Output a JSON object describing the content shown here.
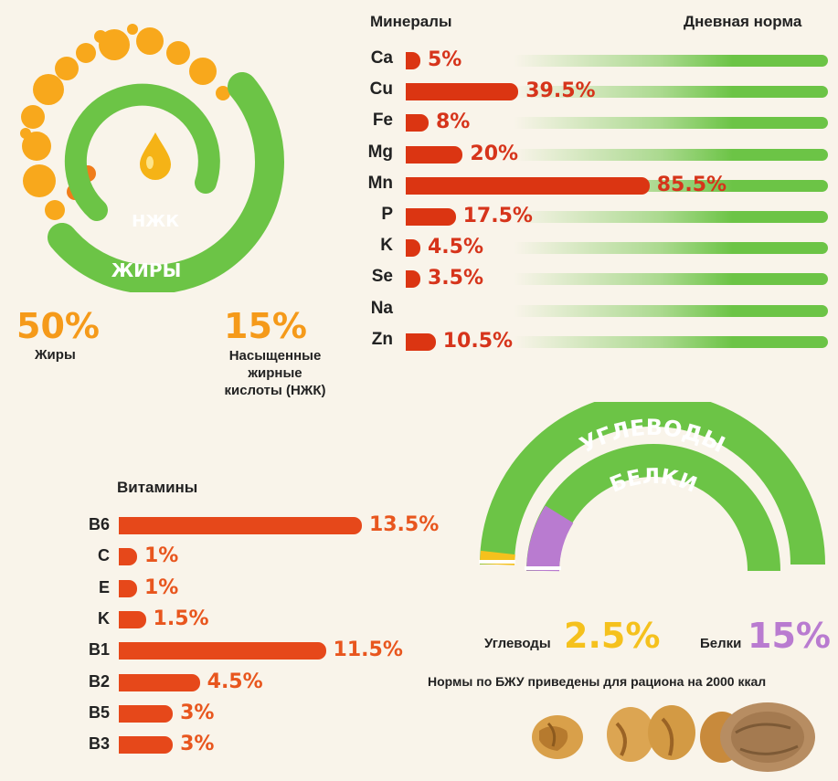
{
  "fats": {
    "ring_outer_label": "ЖИРЫ",
    "ring_inner_label": "НЖК",
    "fat_pct": "50%",
    "fat_label": "Жиры",
    "sfa_pct": "15%",
    "sfa_label_lines": [
      "Насыщенные",
      "жирные",
      "кислоты (НЖК)"
    ]
  },
  "minerals": {
    "title": "Минералы",
    "norm_title": "Дневная норма"
  },
  "vitamins": {
    "title": "Витамины"
  },
  "macros": {
    "carbs_arc_label": "УГЛЕВОДЫ",
    "protein_arc_label": "БЕЛКИ",
    "carbs_label": "Углеводы",
    "carbs_pct": "2.5%",
    "protein_label": "Белки",
    "protein_pct": "15%",
    "note": "Нормы по БЖУ приведены для рациона на 2000 ккал"
  },
  "colors": {
    "green": "#6cc446",
    "orange": "#f59a1a",
    "red_bar": "#db3512",
    "yellow": "#f5c11d",
    "violet": "#b97bd0"
  },
  "chart_data": [
    {
      "type": "bar",
      "orientation": "horizontal",
      "title": "Минералы",
      "legend": "Дневная норма",
      "categories": [
        "Ca",
        "Cu",
        "Fe",
        "Mg",
        "Mn",
        "P",
        "K",
        "Se",
        "Na",
        "Zn"
      ],
      "values": [
        5,
        39.5,
        8,
        20,
        85.5,
        17.5,
        4.5,
        3.5,
        0,
        10.5
      ],
      "labels": [
        "5%",
        "39.5%",
        "8%",
        "20%",
        "85.5%",
        "17.5%",
        "4.5%",
        "3.5%",
        "",
        "10.5%"
      ],
      "xlim": [
        0,
        100
      ]
    },
    {
      "type": "bar",
      "orientation": "horizontal",
      "title": "Витамины",
      "categories": [
        "B6",
        "C",
        "E",
        "K",
        "B1",
        "B2",
        "B5",
        "B3"
      ],
      "values": [
        13.5,
        1,
        1,
        1.5,
        11.5,
        4.5,
        3,
        3
      ],
      "labels": [
        "13.5%",
        "1%",
        "1%",
        "1.5%",
        "11.5%",
        "4.5%",
        "3%",
        "3%"
      ]
    },
    {
      "type": "pie",
      "variant": "arc",
      "series": [
        {
          "name": "Углеводы",
          "value": 2.5
        },
        {
          "name": "Белки",
          "value": 15
        }
      ]
    },
    {
      "type": "pie",
      "variant": "ring",
      "series": [
        {
          "name": "Жиры",
          "value": 50
        },
        {
          "name": "Насыщенные жирные кислоты (НЖК)",
          "value": 15
        }
      ]
    }
  ]
}
